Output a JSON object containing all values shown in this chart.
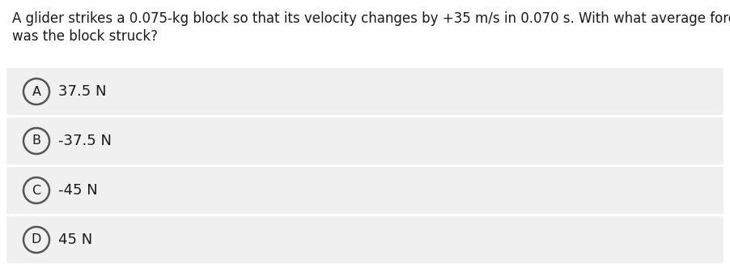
{
  "question_line1": "A glider strikes a 0.075-kg block so that its velocity changes by +35 m/s in 0.070 s. With what average force",
  "question_line2": "was the block struck?",
  "options": [
    {
      "letter": "A",
      "text": "37.5 N"
    },
    {
      "letter": "B",
      "text": "-37.5 N"
    },
    {
      "letter": "C",
      "text": "-45 N"
    },
    {
      "letter": "D",
      "text": "45 N"
    }
  ],
  "bg_color": "#ffffff",
  "option_bg_color": "#f0f0f0",
  "question_font_size": 12.0,
  "option_font_size": 13.0,
  "letter_font_size": 11.5,
  "text_color": "#1a1a1a",
  "circle_edge_color": "#555555",
  "fig_width": 9.02,
  "fig_height": 3.37,
  "dpi": 100
}
